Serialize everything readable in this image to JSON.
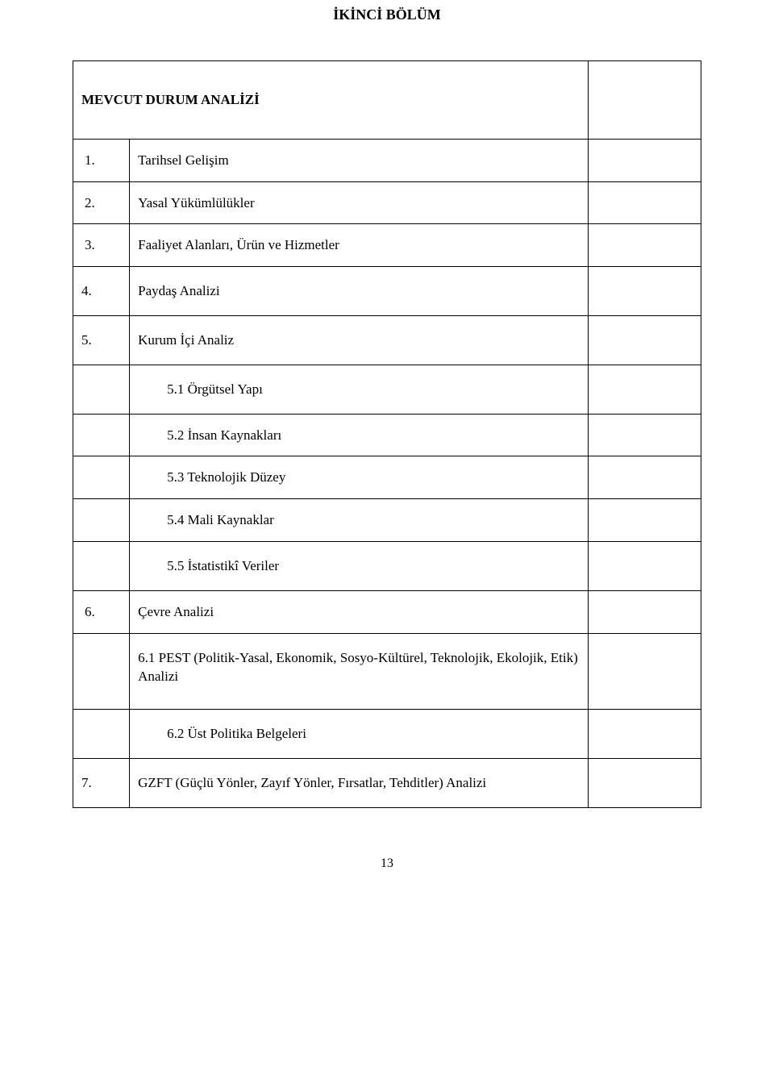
{
  "title": "İKİNCİ BÖLÜM",
  "sectionHeader": "MEVCUT DURUM ANALİZİ",
  "rows": {
    "r1_num": "1.",
    "r1_text": "Tarihsel Gelişim",
    "r2_num": "2.",
    "r2_text": "Yasal Yükümlülükler",
    "r3_num": "3.",
    "r3_text": "Faaliyet Alanları, Ürün ve Hizmetler",
    "r4_num": "4.",
    "r4_text": "Paydaş Analizi",
    "r5_num": "5.",
    "r5_text": "Kurum İçi Analiz",
    "r5_1": "5.1 Örgütsel Yapı",
    "r5_2": "5.2 İnsan Kaynakları",
    "r5_3": "5.3 Teknolojik Düzey",
    "r5_4": "5.4 Mali Kaynaklar",
    "r5_5": "5.5 İstatistikî Veriler",
    "r6_num": "6.",
    "r6_text": "Çevre Analizi",
    "r6_1": "6.1 PEST (Politik-Yasal, Ekonomik, Sosyo-Kültürel, Teknolojik, Ekolojik, Etik) Analizi",
    "r6_2": "6.2 Üst Politika Belgeleri",
    "r7_num": "7.",
    "r7_text": "GZFT (Güçlü Yönler, Zayıf Yönler, Fırsatlar, Tehditler) Analizi"
  },
  "pageNumber": "13",
  "colors": {
    "border": "#000000",
    "background": "#ffffff",
    "text": "#000000"
  },
  "typography": {
    "font_family": "Times New Roman",
    "title_fontsize": 18,
    "body_fontsize": 17,
    "pagenum_fontsize": 16
  }
}
